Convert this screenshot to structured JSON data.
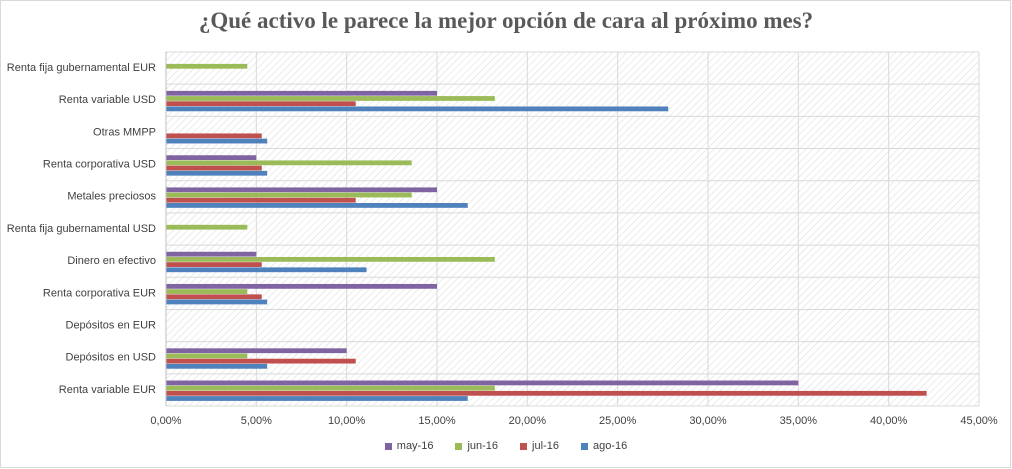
{
  "chart_data": {
    "type": "bar",
    "orientation": "horizontal",
    "title": "¿Qué activo le parece la mejor opción de cara al próximo mes?",
    "categories": [
      "Renta fija gubernamental EUR",
      "Renta variable USD",
      "Otras MMPP",
      "Renta corporativa USD",
      "Metales preciosos",
      "Renta fija gubernamental USD",
      "Dinero en efectivo",
      "Renta corporativa EUR",
      "Depósitos en EUR",
      "Depósitos en USD",
      "Renta variable EUR"
    ],
    "series": [
      {
        "name": "may-16",
        "color": "#8064a2",
        "values": [
          0,
          15.0,
          0,
          5.0,
          15.0,
          0,
          5.0,
          15.0,
          0,
          10.0,
          35.0
        ]
      },
      {
        "name": "jun-16",
        "color": "#9bbb59",
        "values": [
          4.5,
          18.2,
          0,
          13.6,
          13.6,
          4.5,
          18.2,
          4.5,
          0,
          4.5,
          18.2
        ]
      },
      {
        "name": "jul-16",
        "color": "#c0504d",
        "values": [
          0,
          10.5,
          5.3,
          5.3,
          10.5,
          0,
          5.3,
          5.3,
          0,
          10.5,
          42.1
        ]
      },
      {
        "name": "ago-16",
        "color": "#4f81bd",
        "values": [
          0,
          27.8,
          5.6,
          5.6,
          16.7,
          0,
          11.1,
          5.6,
          0,
          5.6,
          16.7
        ]
      }
    ],
    "xlim": [
      0,
      45
    ],
    "xticks": [
      "0,00%",
      "5,00%",
      "10,00%",
      "15,00%",
      "20,00%",
      "25,00%",
      "30,00%",
      "35,00%",
      "40,00%",
      "45,00%"
    ],
    "xlabel": "",
    "ylabel": "",
    "grid": true,
    "legend_position": "bottom"
  }
}
